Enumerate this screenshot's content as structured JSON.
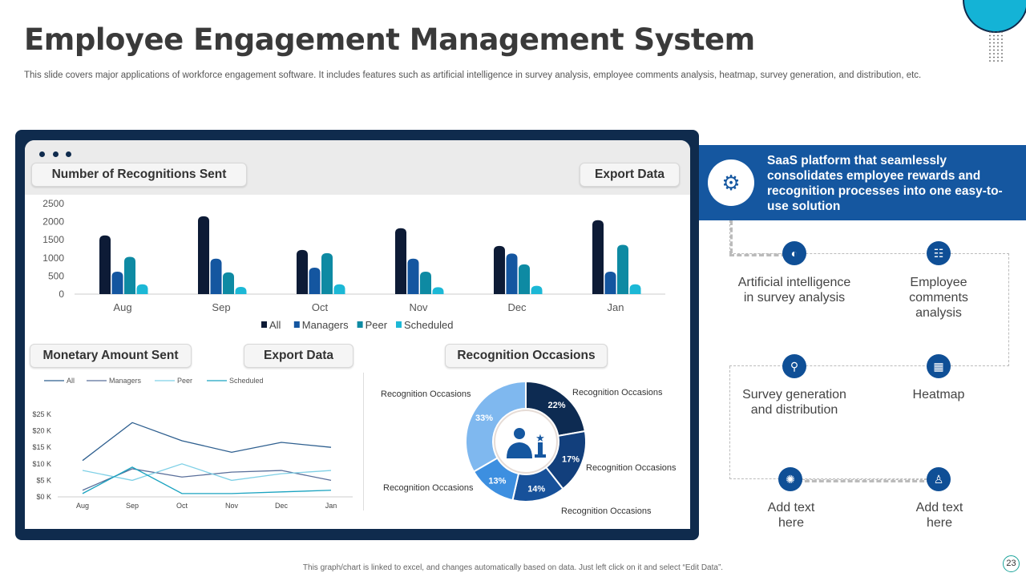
{
  "header": {
    "title": "Employee Engagement Management System",
    "subtitle": "This slide covers major applications of workforce engagement software. It includes features such as artificial intelligence in survey analysis, employee comments analysis, heatmap, survey generation, and distribution, etc."
  },
  "dashboard": {
    "bar_title": "Number of Recognitions Sent",
    "export_label": "Export Data",
    "line_title": "Monetary Amount  Sent",
    "line_export_label": "Export Data",
    "pie_title": "Recognition Occasions"
  },
  "chart_data": [
    {
      "type": "bar",
      "categories": [
        "Aug",
        "Sep",
        "Oct",
        "Nov",
        "Dec",
        "Jan"
      ],
      "ylim": [
        0,
        2500
      ],
      "yticks": [
        "0",
        "500",
        "1000",
        "1500",
        "2000",
        "2500"
      ],
      "legend": "bottom",
      "series": [
        {
          "name": "All",
          "color": "#0d1b36",
          "values": [
            1620,
            2150,
            1220,
            1820,
            1330,
            2040
          ]
        },
        {
          "name": "Managers",
          "color": "#1456a0",
          "values": [
            620,
            980,
            730,
            980,
            1120,
            620
          ]
        },
        {
          "name": "Peer",
          "color": "#0e8aa3",
          "values": [
            1030,
            600,
            1130,
            620,
            820,
            1360
          ]
        },
        {
          "name": "Scheduled",
          "color": "#1cb8d6",
          "values": [
            270,
            200,
            270,
            190,
            230,
            270
          ]
        }
      ]
    },
    {
      "type": "line",
      "categories": [
        "Aug",
        "Sep",
        "Oct",
        "Nov",
        "Dec",
        "Jan"
      ],
      "ylim": [
        0,
        25
      ],
      "yticks": [
        "$0 K",
        "$5 K",
        "$10 K",
        "$15 K",
        "$20 K",
        "$25 K"
      ],
      "legend": "top",
      "series": [
        {
          "name": "All",
          "color": "#2e5f8f",
          "values": [
            11,
            22.5,
            17,
            13.5,
            16.5,
            15
          ]
        },
        {
          "name": "Managers",
          "color": "#5a6f9a",
          "values": [
            2,
            8.5,
            6,
            7.5,
            8,
            5
          ]
        },
        {
          "name": "Peer",
          "color": "#7fd0e6",
          "values": [
            8,
            5,
            10,
            5,
            7,
            8
          ]
        },
        {
          "name": "Scheduled",
          "color": "#1aa3c0",
          "values": [
            1,
            9,
            1,
            1,
            1.5,
            2
          ]
        }
      ]
    },
    {
      "type": "pie",
      "labels": [
        "Recognition Occasions",
        "Recognition Occasions",
        "Recognition Occasions",
        "Recognition Occasions",
        "Recognition Occasions"
      ],
      "values": [
        22,
        17,
        14,
        13,
        33
      ],
      "value_labels": [
        "22%",
        "17%",
        "14%",
        "13%",
        "33%"
      ],
      "colors": [
        "#0d2b52",
        "#123f7c",
        "#17519a",
        "#3d8fe0",
        "#7fb8ef"
      ]
    }
  ],
  "right_panel": {
    "headline": "SaaS platform that seamlessly consolidates employee rewards and recognition processes into one easy-to-use solution",
    "features": [
      {
        "label": "Artificial intelligence in survey analysis",
        "icon": "ai-brain-icon"
      },
      {
        "label": "Employee comments analysis",
        "icon": "team-icon"
      },
      {
        "label": "Survey generation and distribution",
        "icon": "network-icon"
      },
      {
        "label": "Heatmap",
        "icon": "heatmap-icon"
      },
      {
        "label": "Add text here",
        "icon": "idea-team-icon"
      },
      {
        "label": "Add text here",
        "icon": "hierarchy-icon"
      }
    ]
  },
  "footer": {
    "note": "This graph/chart is linked to excel, and changes automatically based on data. Just left click on it and select “Edit Data”.",
    "page": "23"
  }
}
